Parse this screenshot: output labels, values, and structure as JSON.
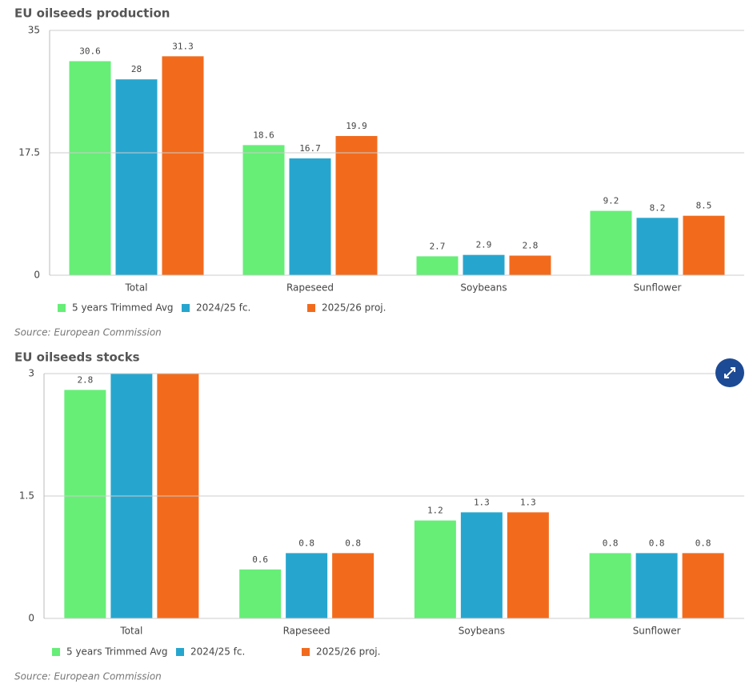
{
  "chart_data": [
    {
      "type": "bar",
      "title": "EU oilseeds production",
      "categories": [
        "Total",
        "Rapeseed",
        "Soybeans",
        "Sunflower"
      ],
      "series": [
        {
          "name": "5 years Trimmed Avg",
          "color": "#66ee77",
          "values": [
            30.6,
            18.6,
            2.7,
            9.2
          ]
        },
        {
          "name": "2024/25 fc.",
          "color": "#26a6cf",
          "values": [
            28,
            16.7,
            2.9,
            8.2
          ]
        },
        {
          "name": "2025/26 proj.",
          "color": "#f26b1d",
          "values": [
            31.3,
            19.9,
            2.8,
            8.5
          ]
        }
      ],
      "ylim": [
        0,
        35
      ],
      "yticks": [
        0,
        17.5,
        35
      ],
      "grid": true,
      "source": "Source: European Commission"
    },
    {
      "type": "bar",
      "title": "EU oilseeds stocks",
      "categories": [
        "Total",
        "Rapeseed",
        "Soybeans",
        "Sunflower"
      ],
      "series": [
        {
          "name": "5 years Trimmed Avg",
          "color": "#66ee77",
          "values": [
            2.8,
            0.6,
            1.2,
            0.8
          ]
        },
        {
          "name": "2024/25 fc.",
          "color": "#26a6cf",
          "values": [
            3,
            0.8,
            1.3,
            0.8
          ]
        },
        {
          "name": "2025/26 proj.",
          "color": "#f26b1d",
          "values": [
            3,
            0.8,
            1.3,
            0.8
          ]
        }
      ],
      "ylim": [
        0,
        3
      ],
      "yticks": [
        0,
        1.5,
        3
      ],
      "grid": true,
      "source": "Source: European Commission"
    }
  ]
}
